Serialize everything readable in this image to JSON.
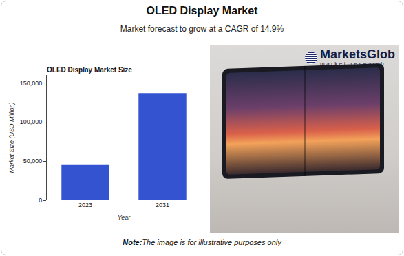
{
  "header": {
    "title": "OLED Display Market",
    "subtitle": "Market forecast to grow at a CAGR of 14.9%"
  },
  "chart_data": {
    "type": "bar",
    "title": "OLED Display Market Size",
    "x_label": "Year",
    "y_label": "Market Size (USD Million)",
    "categories": [
      "2023",
      "2031"
    ],
    "values": [
      45000,
      137000
    ],
    "color": "#3353d1",
    "ylim": [
      0,
      160000
    ],
    "yticks": [
      0,
      {
        "value": 50000,
        "label": "50,000"
      },
      {
        "value": 100000,
        "label": "100,000"
      },
      {
        "value": 150000,
        "label": "150,000"
      }
    ],
    "grid": false
  },
  "image": {
    "logo": "MarketsGlob",
    "logo_tagline": "market research"
  },
  "note": {
    "label": "Note:",
    "text": "The image is for illustrative purposes only"
  }
}
